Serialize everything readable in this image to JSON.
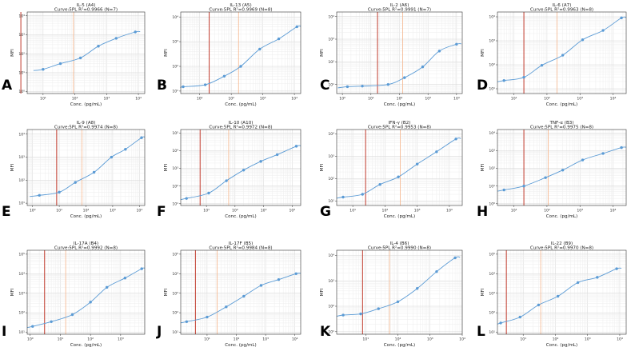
{
  "figure": {
    "panel_letters": [
      "A",
      "B",
      "C",
      "D",
      "E",
      "F",
      "G",
      "H",
      "I",
      "J",
      "K",
      "L"
    ]
  },
  "chart_data": [
    {
      "letter": "A",
      "type": "line",
      "title": "IL-5 (A4)",
      "subtitle": "Curve:5PL R²=0.9966 (N=7)",
      "xlabel": "Conc. (pg/mL)",
      "ylabel": "MFI",
      "xlim_log10": [
        0.5,
        4.2
      ],
      "ylim_log10": [
        -0.1,
        4.2
      ],
      "xticks_log10": [
        1,
        2,
        3,
        4
      ],
      "yticks_log10": [
        0,
        1,
        2,
        3,
        4
      ],
      "red_line_x": 2,
      "orange_line_x": 90,
      "points_x": [
        10,
        35,
        150,
        550,
        2000,
        8000
      ],
      "points_y": [
        15,
        30,
        60,
        250,
        650,
        1400
      ]
    },
    {
      "letter": "B",
      "type": "line",
      "title": "IL-13 (A5)",
      "subtitle": "Curve:5PL R²=0.9969 (N=8)",
      "xlabel": "Conc. (pg/mL)",
      "ylabel": "MFI",
      "xlim_log10": [
        0.4,
        4.2
      ],
      "ylim_log10": [
        0.9,
        4.2
      ],
      "xticks_log10": [
        1,
        2,
        3,
        4
      ],
      "yticks_log10": [
        1,
        2,
        3,
        4
      ],
      "red_line_x": 20,
      "orange_line_x": 170,
      "points_x": [
        3,
        15,
        60,
        200,
        800,
        3200,
        12000
      ],
      "points_y": [
        15,
        18,
        40,
        100,
        500,
        1300,
        4000
      ]
    },
    {
      "letter": "C",
      "type": "line",
      "title": "IL-2 (A6)",
      "subtitle": "Curve:5PL R²=0.9991 (N=7)",
      "xlabel": "Conc. (pg/mL)",
      "ylabel": "MFI",
      "xlim_log10": [
        -0.2,
        4.2
      ],
      "ylim_log10": [
        0.6,
        4.2
      ],
      "xticks_log10": [
        0,
        1,
        2,
        3,
        4
      ],
      "yticks_log10": [
        1,
        2,
        3,
        4
      ],
      "red_line_x": 17,
      "orange_line_x": 130,
      "points_x": [
        1.5,
        5,
        40,
        150,
        650,
        2500,
        10000
      ],
      "points_y": [
        8,
        8.5,
        10,
        20,
        60,
        300,
        600
      ]
    },
    {
      "letter": "D",
      "type": "line",
      "title": "IL-6 (A7)",
      "subtitle": "Curve:5PL R²=0.9963 (N=8)",
      "xlabel": "Conc. (pg/mL)",
      "ylabel": "MFI",
      "xlim_log10": [
        0.5,
        4.4
      ],
      "ylim_log10": [
        0.8,
        4.2
      ],
      "xticks_log10": [
        1,
        2,
        3,
        4
      ],
      "yticks_log10": [
        1,
        2,
        3,
        4
      ],
      "red_line_x": 20,
      "orange_line_x": 200,
      "points_x": [
        5,
        20,
        70,
        300,
        1200,
        5000,
        18000
      ],
      "points_y": [
        22,
        30,
        95,
        250,
        1100,
        2700,
        9000
      ]
    },
    {
      "letter": "E",
      "type": "line",
      "title": "IL-9 (A8)",
      "subtitle": "Curve:5PL R²=0.9974 (N=8)",
      "xlabel": "Conc. (pg/mL)",
      "ylabel": "MFI",
      "xlim_log10": [
        -0.2,
        4.2
      ],
      "ylim_log10": [
        0.9,
        4.2
      ],
      "xticks_log10": [
        0,
        1,
        2,
        3,
        4
      ],
      "yticks_log10": [
        1,
        2,
        3,
        4
      ],
      "red_line_x": 8,
      "orange_line_x": 70,
      "points_x": [
        1.8,
        10,
        40,
        200,
        900,
        3000,
        12000
      ],
      "points_y": [
        22,
        30,
        80,
        220,
        1000,
        2200,
        7000
      ]
    },
    {
      "letter": "F",
      "type": "line",
      "title": "IL-10 (A10)",
      "subtitle": "Curve:5PL R²=0.9972 (N=8)",
      "xlabel": "Conc. (pg/mL)",
      "ylabel": "MFI",
      "xlim_log10": [
        0.1,
        4.3
      ],
      "ylim_log10": [
        0.9,
        5.2
      ],
      "xticks_log10": [
        1,
        2,
        3,
        4
      ],
      "yticks_log10": [
        1,
        2,
        3,
        4,
        5
      ],
      "red_line_x": 6,
      "orange_line_x": 60,
      "points_x": [
        2,
        12,
        50,
        200,
        800,
        3000,
        14000
      ],
      "points_y": [
        20,
        40,
        200,
        800,
        2500,
        6000,
        18000
      ]
    },
    {
      "letter": "G",
      "type": "line",
      "title": "IFN-γ (B2)",
      "subtitle": "Curve:5PL R²=0.9953 (N=8)",
      "xlabel": "Conc. (pg/mL)",
      "ylabel": "MFI",
      "xlim_log10": [
        0.5,
        4.4
      ],
      "ylim_log10": [
        0.8,
        4.2
      ],
      "xticks_log10": [
        1,
        2,
        3,
        4
      ],
      "yticks_log10": [
        1,
        2,
        3,
        4
      ],
      "red_line_x": 25,
      "orange_line_x": 300,
      "points_x": [
        5,
        20,
        70,
        260,
        1000,
        4000,
        16000
      ],
      "points_y": [
        15,
        20,
        55,
        120,
        450,
        1600,
        6000
      ]
    },
    {
      "letter": "H",
      "type": "line",
      "title": "TNF-α (B3)",
      "subtitle": "Curve:5PL R²=0.9975 (N=8)",
      "xlabel": "Conc. (pg/mL)",
      "ylabel": "MFI",
      "xlim_log10": [
        0.5,
        4.4
      ],
      "ylim_log10": [
        -0.1,
        4.2
      ],
      "xticks_log10": [
        1,
        2,
        3,
        4
      ],
      "yticks_log10": [
        0,
        1,
        2,
        3,
        4
      ],
      "red_line_x": 20,
      "orange_line_x": 110,
      "points_x": [
        5,
        20,
        90,
        300,
        1200,
        5000,
        18000
      ],
      "points_y": [
        6,
        10,
        30,
        80,
        300,
        700,
        1500
      ]
    },
    {
      "letter": "I",
      "type": "line",
      "title": "IL-17A (B4)",
      "subtitle": "Curve:5PL R²=0.9992 (N=8)",
      "xlabel": "Conc. (pg/mL)",
      "ylabel": "MFI",
      "xlim_log10": [
        -0.1,
        3.8
      ],
      "ylim_log10": [
        0.9,
        5.2
      ],
      "xticks_log10": [
        0,
        1,
        2,
        3
      ],
      "yticks_log10": [
        1,
        2,
        3,
        4,
        5
      ],
      "red_line_x": 3,
      "orange_line_x": 15,
      "points_x": [
        1.2,
        5,
        25,
        100,
        350,
        1400,
        5000
      ],
      "points_y": [
        20,
        35,
        80,
        350,
        2000,
        6000,
        18000
      ]
    },
    {
      "letter": "J",
      "type": "line",
      "title": "IL-17F (B5)",
      "subtitle": "Curve:5PL R²=0.9984 (N=8)",
      "xlabel": "Conc. (pg/mL)",
      "ylabel": "MFI",
      "xlim_log10": [
        0.1,
        4.2
      ],
      "ylim_log10": [
        0.9,
        5.2
      ],
      "xticks_log10": [
        1,
        2,
        3,
        4
      ],
      "yticks_log10": [
        1,
        2,
        3,
        4,
        5
      ],
      "red_line_x": 4,
      "orange_line_x": 22,
      "points_x": [
        2,
        10,
        45,
        180,
        700,
        2800,
        11000
      ],
      "points_y": [
        35,
        60,
        200,
        700,
        2500,
        5000,
        10000
      ]
    },
    {
      "letter": "K",
      "type": "line",
      "title": "IL-4 (B6)",
      "subtitle": "Curve:5PL R²=0.9990 (N=8)",
      "xlabel": "Conc. (pg/mL)",
      "ylabel": "MFI",
      "xlim_log10": [
        0.1,
        4.0
      ],
      "ylim_log10": [
        0.9,
        4.2
      ],
      "xticks_log10": [
        1,
        2,
        3,
        4
      ],
      "yticks_log10": [
        1,
        2,
        3,
        4
      ],
      "red_line_x": 8,
      "orange_line_x": 55,
      "points_x": [
        2,
        7,
        25,
        100,
        400,
        1600,
        6000
      ],
      "points_y": [
        45,
        50,
        80,
        150,
        500,
        2300,
        8000
      ]
    },
    {
      "letter": "L",
      "type": "line",
      "title": "IL-22 (B9)",
      "subtitle": "Curve:5PL R²=0.9970 (N=8)",
      "xlabel": "Conc. (pg/mL)",
      "ylabel": "MFI",
      "xlim_log10": [
        0.2,
        4.2
      ],
      "ylim_log10": [
        0.9,
        5.2
      ],
      "xticks_log10": [
        1,
        2,
        3,
        4
      ],
      "yticks_log10": [
        1,
        2,
        3,
        4,
        5
      ],
      "red_line_x": 3,
      "orange_line_x": 35,
      "points_x": [
        2,
        8,
        30,
        120,
        500,
        2000,
        8000
      ],
      "points_y": [
        30,
        60,
        250,
        700,
        3500,
        6500,
        18000
      ]
    }
  ]
}
